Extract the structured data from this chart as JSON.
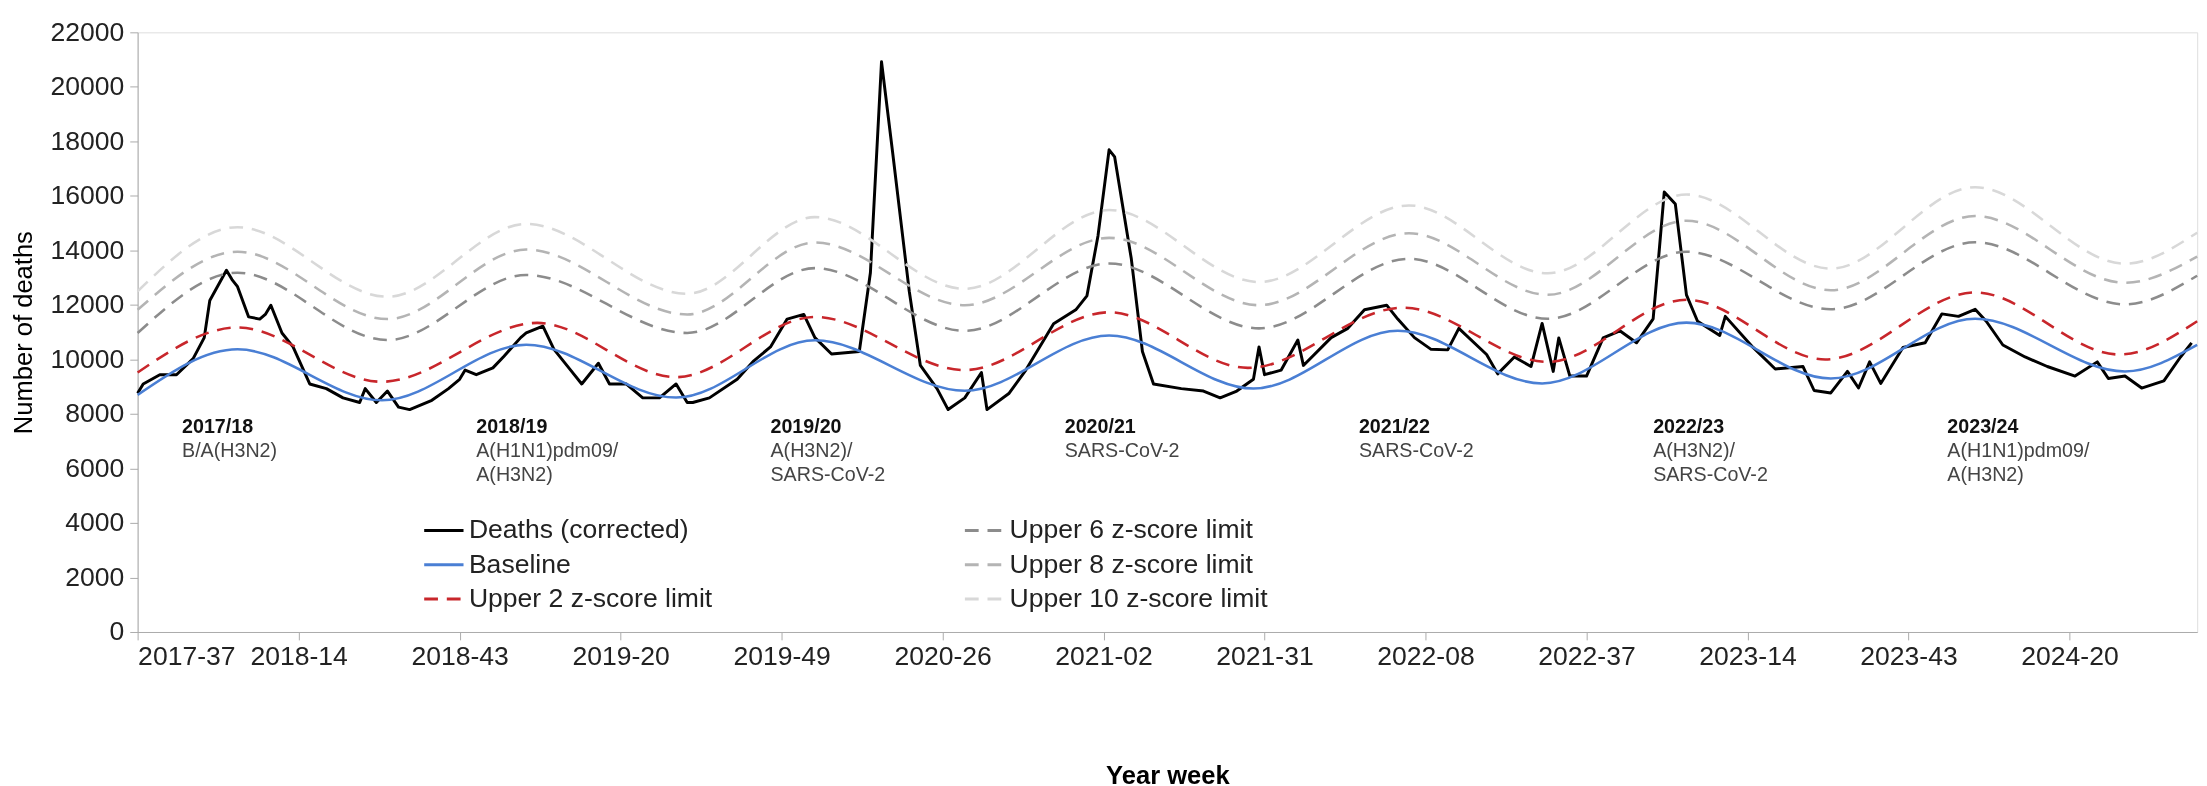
{
  "chart_data": {
    "type": "line",
    "xlabel": "Year week",
    "ylabel": "Number of deaths",
    "xlim": [
      "2017-09-11",
      "2024-10-21"
    ],
    "ylim": [
      0,
      22000
    ],
    "yticks": [
      0,
      2000,
      4000,
      6000,
      8000,
      10000,
      12000,
      14000,
      16000,
      18000,
      20000,
      22000
    ],
    "xticks": [
      {
        "value": "2017-09-11",
        "label": "2017-37"
      },
      {
        "value": "2018-04-02",
        "label": "2018-14"
      },
      {
        "value": "2018-10-22",
        "label": "2018-43"
      },
      {
        "value": "2019-05-13",
        "label": "2019-20"
      },
      {
        "value": "2019-12-02",
        "label": "2019-49"
      },
      {
        "value": "2020-06-22",
        "label": "2020-26"
      },
      {
        "value": "2021-01-11",
        "label": "2021-02"
      },
      {
        "value": "2021-08-02",
        "label": "2021-31"
      },
      {
        "value": "2022-02-21",
        "label": "2022-08"
      },
      {
        "value": "2022-09-12",
        "label": "2022-37"
      },
      {
        "value": "2023-04-03",
        "label": "2023-14"
      },
      {
        "value": "2023-10-23",
        "label": "2023-43"
      },
      {
        "value": "2024-05-13",
        "label": "2024-20"
      }
    ],
    "legend": "bottom",
    "series": [
      {
        "name": "Deaths (corrected)",
        "color": "#000000",
        "line_style": "solid",
        "x": [
          "2017-09-11",
          "2017-09-18",
          "2017-10-09",
          "2017-10-30",
          "2017-11-20",
          "2017-12-04",
          "2017-12-11",
          "2018-01-01",
          "2018-01-08",
          "2018-01-15",
          "2018-01-29",
          "2018-02-12",
          "2018-02-19",
          "2018-02-26",
          "2018-03-12",
          "2018-03-26",
          "2018-04-16",
          "2018-05-07",
          "2018-05-28",
          "2018-06-18",
          "2018-06-25",
          "2018-07-09",
          "2018-07-23",
          "2018-08-06",
          "2018-08-20",
          "2018-09-17",
          "2018-10-08",
          "2018-10-22",
          "2018-10-29",
          "2018-11-12",
          "2018-12-03",
          "2018-12-17",
          "2019-01-07",
          "2019-01-14",
          "2019-02-04",
          "2019-02-18",
          "2019-03-11",
          "2019-03-25",
          "2019-04-15",
          "2019-04-29",
          "2019-05-20",
          "2019-06-10",
          "2019-07-01",
          "2019-07-22",
          "2019-08-05",
          "2019-08-12",
          "2019-09-02",
          "2019-10-07",
          "2019-10-28",
          "2019-11-18",
          "2019-12-09",
          "2019-12-30",
          "2020-01-13",
          "2020-02-03",
          "2020-03-09",
          "2020-03-23",
          "2020-04-06",
          "2020-04-20",
          "2020-05-11",
          "2020-05-25",
          "2020-06-15",
          "2020-06-29",
          "2020-07-20",
          "2020-08-10",
          "2020-08-17",
          "2020-09-14",
          "2020-10-05",
          "2020-11-09",
          "2020-12-07",
          "2020-12-21",
          "2021-01-04",
          "2021-01-18",
          "2021-01-25",
          "2021-02-15",
          "2021-03-01",
          "2021-03-15",
          "2021-04-19",
          "2021-05-17",
          "2021-06-07",
          "2021-06-28",
          "2021-07-19",
          "2021-07-26",
          "2021-08-02",
          "2021-08-23",
          "2021-09-13",
          "2021-09-20",
          "2021-10-25",
          "2021-11-15",
          "2021-12-06",
          "2022-01-03",
          "2022-01-17",
          "2022-02-07",
          "2022-02-28",
          "2022-03-21",
          "2022-04-04",
          "2022-05-09",
          "2022-05-23",
          "2022-06-13",
          "2022-07-04",
          "2022-07-18",
          "2022-08-01",
          "2022-08-08",
          "2022-08-22",
          "2022-09-12",
          "2022-10-03",
          "2022-10-24",
          "2022-11-14",
          "2022-12-05",
          "2022-12-12",
          "2022-12-19",
          "2023-01-02",
          "2023-01-16",
          "2023-01-30",
          "2023-02-27",
          "2023-03-06",
          "2023-04-10",
          "2023-05-08",
          "2023-06-12",
          "2023-06-26",
          "2023-07-17",
          "2023-08-07",
          "2023-08-21",
          "2023-09-04",
          "2023-09-18",
          "2023-10-16",
          "2023-11-13",
          "2023-12-04",
          "2023-12-25",
          "2024-01-15",
          "2024-01-29",
          "2024-02-19",
          "2024-03-18",
          "2024-04-15",
          "2024-05-20",
          "2024-06-17",
          "2024-07-01",
          "2024-07-22",
          "2024-08-12",
          "2024-09-09",
          "2024-09-30",
          "2024-10-14"
        ],
        "values": [
          8760,
          9100,
          9440,
          9440,
          10030,
          10800,
          12160,
          13270,
          12930,
          12670,
          11560,
          11480,
          11650,
          11990,
          10970,
          10460,
          9100,
          8930,
          8590,
          8420,
          8930,
          8420,
          8840,
          8250,
          8160,
          8500,
          8930,
          9270,
          9610,
          9440,
          9690,
          10120,
          10800,
          10970,
          11220,
          10370,
          9610,
          9100,
          9860,
          9100,
          9100,
          8590,
          8590,
          9100,
          8420,
          8420,
          8590,
          9270,
          9950,
          10460,
          11480,
          11650,
          10800,
          10200,
          10290,
          13180,
          20920,
          17600,
          12500,
          9780,
          8930,
          8160,
          8590,
          9520,
          8160,
          8760,
          9610,
          11310,
          11820,
          12330,
          14540,
          17690,
          17430,
          13690,
          10290,
          9100,
          8930,
          8840,
          8590,
          8840,
          9270,
          10460,
          9440,
          9610,
          10710,
          9780,
          10800,
          11140,
          11820,
          11990,
          11480,
          10800,
          10370,
          10350,
          11140,
          10180,
          9470,
          10090,
          9740,
          11320,
          9560,
          10790,
          9390,
          9390,
          10790,
          11050,
          10610,
          11490,
          13770,
          16140,
          15700,
          12370,
          11400,
          10880,
          11580,
          10440,
          9650,
          9740,
          8860,
          8770,
          9560,
          8950,
          9910,
          9120,
          10440,
          10610,
          11670,
          11580,
          11840,
          11400,
          10530,
          10090,
          9740,
          9390,
          9910,
          9300,
          9390,
          8950,
          9210,
          10090,
          10610
        ]
      },
      {
        "name": "Baseline",
        "color": "#4a7fd4",
        "line_style": "solid",
        "x": [
          "2017-09-11",
          "2018-01-15",
          "2018-07-16",
          "2019-01-14",
          "2019-07-22",
          "2020-01-13",
          "2020-07-20",
          "2021-01-18",
          "2021-07-19",
          "2022-01-17",
          "2022-07-18",
          "2023-01-16",
          "2023-07-17",
          "2024-01-15",
          "2024-07-22",
          "2024-10-21"
        ],
        "values": [
          8700,
          10370,
          8500,
          10540,
          8600,
          10700,
          8850,
          10880,
          8930,
          11050,
          9120,
          11350,
          9300,
          11490,
          9560,
          10530
        ]
      },
      {
        "name": "Upper 2 z-score limit",
        "color": "#c8262b",
        "line_style": "dashed",
        "x": [
          "2017-09-11",
          "2018-01-15",
          "2018-07-16",
          "2019-01-28",
          "2019-07-22",
          "2020-01-13",
          "2020-07-20",
          "2021-01-18",
          "2021-07-12",
          "2022-01-24",
          "2022-07-25",
          "2023-01-16",
          "2023-07-10",
          "2024-01-15",
          "2024-07-15",
          "2024-10-21"
        ],
        "values": [
          9520,
          11170,
          9180,
          11340,
          9350,
          11560,
          9610,
          11730,
          9690,
          11900,
          9910,
          12190,
          10000,
          12460,
          10180,
          11400
        ]
      },
      {
        "name": "Upper 6 z-score limit",
        "color": "#8c8c8c",
        "line_style": "dashed",
        "x": [
          "2017-09-11",
          "2018-01-15",
          "2018-07-23",
          "2019-01-14",
          "2019-08-05",
          "2020-01-13",
          "2020-07-20",
          "2021-01-18",
          "2021-07-26",
          "2022-01-31",
          "2022-07-25",
          "2023-01-16",
          "2023-07-17",
          "2024-01-15",
          "2024-07-22",
          "2024-10-21"
        ],
        "values": [
          10970,
          13180,
          10710,
          13100,
          10970,
          13350,
          11050,
          13520,
          11140,
          13690,
          11490,
          13950,
          11840,
          14300,
          12020,
          13070
        ]
      },
      {
        "name": "Upper 8 z-score limit",
        "color": "#b4b4b4",
        "line_style": "dashed",
        "x": [
          "2017-09-11",
          "2018-01-15",
          "2018-07-23",
          "2019-01-14",
          "2019-08-05",
          "2020-01-13",
          "2020-07-20",
          "2021-01-18",
          "2021-07-26",
          "2022-01-31",
          "2022-07-25",
          "2023-01-16",
          "2023-07-17",
          "2024-01-15",
          "2024-07-22",
          "2024-10-21"
        ],
        "values": [
          11820,
          13950,
          11480,
          14030,
          11650,
          14290,
          11990,
          14460,
          11990,
          14630,
          12370,
          15090,
          12540,
          15260,
          12810,
          13770
        ]
      },
      {
        "name": "Upper 10 z-score limit",
        "color": "#d8d8d8",
        "line_style": "dashed",
        "x": [
          "2017-09-11",
          "2018-01-15",
          "2018-07-23",
          "2019-01-14",
          "2019-08-05",
          "2020-01-13",
          "2020-07-20",
          "2021-01-18",
          "2021-07-26",
          "2022-01-31",
          "2022-07-25",
          "2023-01-16",
          "2023-07-17",
          "2024-01-15",
          "2024-07-22",
          "2024-10-21"
        ],
        "values": [
          12500,
          14850,
          12300,
          14970,
          12410,
          15220,
          12590,
          15480,
          12840,
          15650,
          13160,
          16050,
          13330,
          16320,
          13510,
          14650
        ]
      }
    ],
    "annotations": [
      "2017/18",
      "B/A(H3N2)",
      "2018/19",
      "A(H1N1)pdm09/\nA(H3N2)",
      "2019/20",
      "A(H3N2)/\nSARS-CoV-2",
      "2020/21",
      "SARS-CoV-2",
      "2021/22",
      "SARS-CoV-2",
      "2022/23",
      "A(H3N2)/\nSARS-CoV-2",
      "2023/24",
      "A(H1N1)pdm09/\nA(H3N2)"
    ]
  }
}
